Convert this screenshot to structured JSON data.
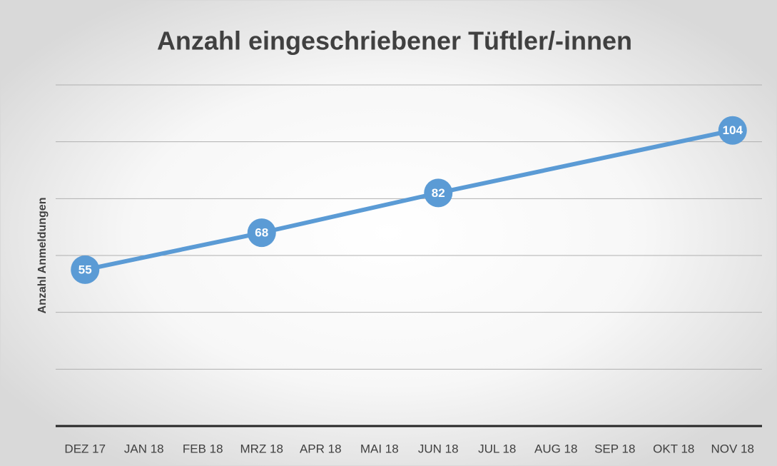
{
  "chart_data": {
    "type": "line",
    "title": "Anzahl eingeschriebener Tüftler/-innen",
    "y_label": "Anzahl Anmeldungen",
    "categories": [
      "DEZ 17",
      "JAN 18",
      "FEB 18",
      "MRZ 18",
      "APR 18",
      "MAI 18",
      "JUN 18",
      "JUL 18",
      "AUG 18",
      "SEP 18",
      "OKT 18",
      "NOV 18"
    ],
    "x": [
      "DEZ 17",
      "MRZ 18",
      "JUN 18",
      "NOV 18"
    ],
    "values": [
      55,
      68,
      82,
      104
    ],
    "color": "#5b9bd5",
    "ylim": [
      0,
      120
    ],
    "yticks": [
      0,
      20,
      40,
      60,
      80,
      100,
      120
    ],
    "grid": true
  }
}
